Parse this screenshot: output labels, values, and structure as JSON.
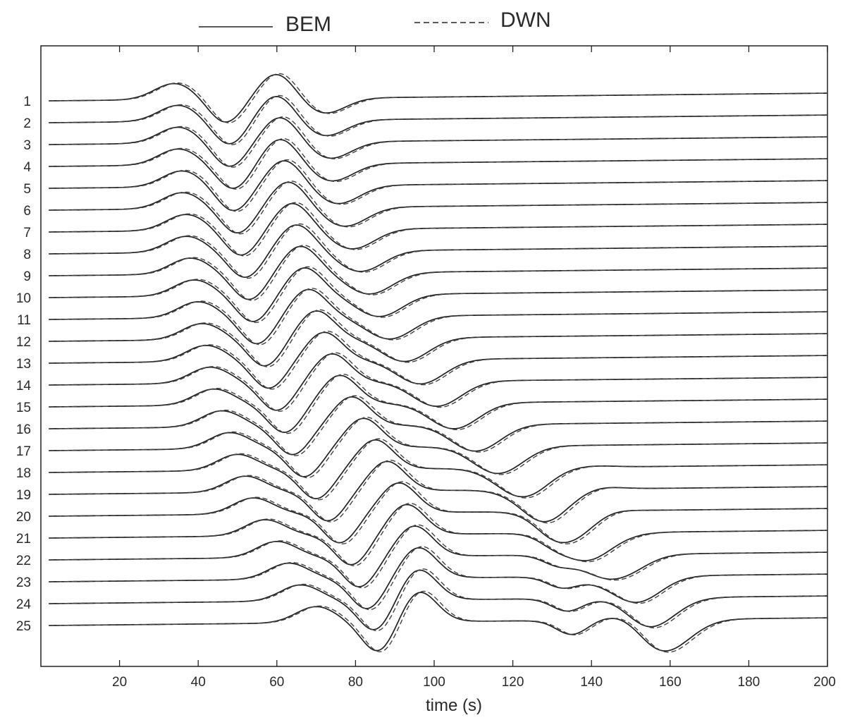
{
  "chart_data": {
    "type": "line",
    "title": "",
    "legend": {
      "placement": "top",
      "entries": [
        {
          "label": "BEM",
          "style": "solid"
        },
        {
          "label": "DWN",
          "style": "dashed"
        }
      ]
    },
    "xlabel": "time (s)",
    "ylabel": "",
    "xlim": [
      0,
      200
    ],
    "xticks": [
      20,
      40,
      60,
      80,
      100,
      120,
      140,
      160,
      180,
      200
    ],
    "grid": false,
    "trace_labels": [
      "1",
      "2",
      "3",
      "4",
      "5",
      "6",
      "7",
      "8",
      "9",
      "10",
      "11",
      "12",
      "13",
      "14",
      "15",
      "16",
      "17",
      "18",
      "19",
      "20",
      "21",
      "22",
      "23",
      "24",
      "25"
    ],
    "series": [
      {
        "name": "BEM",
        "line": "solid",
        "color": "#222222"
      },
      {
        "name": "DWN",
        "line": "dashed",
        "color": "#444444"
      }
    ],
    "waveform_arrivals": {
      "description": "",
      "first_peak_time": [
        34,
        35,
        35,
        35,
        36,
        36,
        37,
        37,
        38,
        39,
        40,
        41,
        42,
        43,
        44,
        46,
        48,
        50,
        52,
        54,
        57,
        60,
        63,
        66,
        70
      ],
      "trough_time": [
        47,
        48,
        48,
        49,
        49,
        50,
        51,
        52,
        53,
        54,
        55,
        57,
        58,
        60,
        62,
        64,
        67,
        70,
        73,
        76,
        79,
        81,
        83,
        85,
        86
      ],
      "second_peak_time": [
        60,
        60,
        61,
        61,
        62,
        63,
        64,
        65,
        66,
        67,
        68,
        70,
        72,
        74,
        76,
        79,
        82,
        85,
        88,
        91,
        93,
        95,
        96,
        96,
        96
      ]
    }
  }
}
